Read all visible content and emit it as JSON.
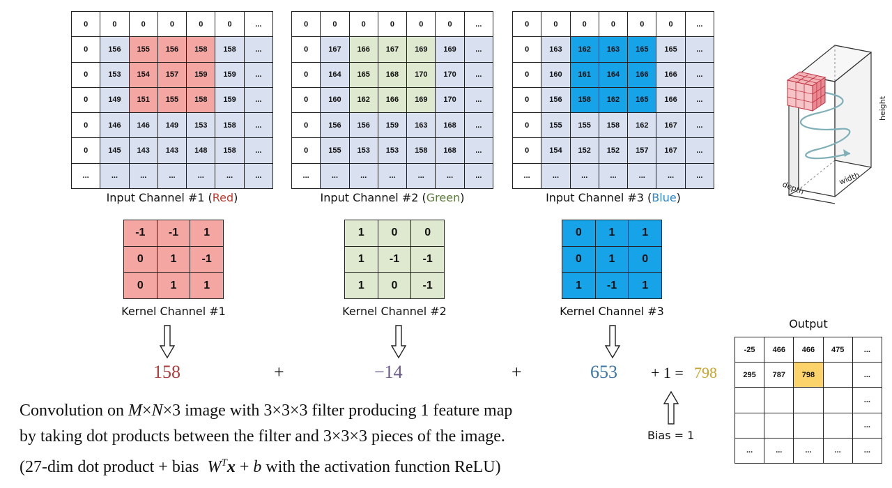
{
  "inputs": [
    {
      "caption_prefix": "Input Channel #1 (",
      "caption_color_word": "Red",
      "caption_suffix": ")",
      "word_color": "#c0392b",
      "fill": "#f4a6a3",
      "bg": "#d9e1f1",
      "rows": [
        [
          "0",
          "0",
          "0",
          "0",
          "0",
          "0",
          "..."
        ],
        [
          "0",
          "156",
          "155",
          "156",
          "158",
          "158",
          "..."
        ],
        [
          "0",
          "153",
          "154",
          "157",
          "159",
          "159",
          "..."
        ],
        [
          "0",
          "149",
          "151",
          "155",
          "158",
          "159",
          "..."
        ],
        [
          "0",
          "146",
          "146",
          "149",
          "153",
          "158",
          "..."
        ],
        [
          "0",
          "145",
          "143",
          "143",
          "148",
          "158",
          "..."
        ],
        [
          "...",
          "...",
          "...",
          "...",
          "...",
          "...",
          "..."
        ]
      ]
    },
    {
      "caption_prefix": "Input Channel #2 (",
      "caption_color_word": "Green",
      "caption_suffix": ")",
      "word_color": "#5a7a3a",
      "fill": "#dfe9cf",
      "bg": "#d9e1f1",
      "rows": [
        [
          "0",
          "0",
          "0",
          "0",
          "0",
          "0",
          "..."
        ],
        [
          "0",
          "167",
          "166",
          "167",
          "169",
          "169",
          "..."
        ],
        [
          "0",
          "164",
          "165",
          "168",
          "170",
          "170",
          "..."
        ],
        [
          "0",
          "160",
          "162",
          "166",
          "169",
          "170",
          "..."
        ],
        [
          "0",
          "156",
          "156",
          "159",
          "163",
          "168",
          "..."
        ],
        [
          "0",
          "155",
          "153",
          "153",
          "158",
          "168",
          "..."
        ],
        [
          "...",
          "...",
          "...",
          "...",
          "...",
          "...",
          "..."
        ]
      ]
    },
    {
      "caption_prefix": "Input Channel #3 (",
      "caption_color_word": "Blue",
      "caption_suffix": ")",
      "word_color": "#2f86c9",
      "fill": "#17a3e8",
      "bg": "#d9e1f1",
      "rows": [
        [
          "0",
          "0",
          "0",
          "0",
          "0",
          "0",
          "..."
        ],
        [
          "0",
          "163",
          "162",
          "163",
          "165",
          "165",
          "..."
        ],
        [
          "0",
          "160",
          "161",
          "164",
          "166",
          "166",
          "..."
        ],
        [
          "0",
          "156",
          "158",
          "162",
          "165",
          "166",
          "..."
        ],
        [
          "0",
          "155",
          "155",
          "158",
          "162",
          "167",
          "..."
        ],
        [
          "0",
          "154",
          "152",
          "152",
          "157",
          "167",
          "..."
        ],
        [
          "...",
          "...",
          "...",
          "...",
          "...",
          "...",
          "..."
        ]
      ]
    }
  ],
  "kernels": [
    {
      "caption": "Kernel Channel #1",
      "fill": "#f4a6a3",
      "rows": [
        [
          "-1",
          "-1",
          "1"
        ],
        [
          "0",
          "1",
          "-1"
        ],
        [
          "0",
          "1",
          "1"
        ]
      ]
    },
    {
      "caption": "Kernel Channel #2",
      "fill": "#dfe9cf",
      "rows": [
        [
          "1",
          "0",
          "0"
        ],
        [
          "1",
          "-1",
          "-1"
        ],
        [
          "1",
          "0",
          "-1"
        ]
      ]
    },
    {
      "caption": "Kernel Channel #3",
      "fill": "#17a3e8",
      "rows": [
        [
          "0",
          "1",
          "1"
        ],
        [
          "0",
          "1",
          "0"
        ],
        [
          "1",
          "-1",
          "1"
        ]
      ]
    }
  ],
  "results": {
    "r1": "158",
    "r1_color": "#b03a3a",
    "plus1": "+",
    "r2": "−14",
    "r2_color": "#6b5a8e",
    "plus2": "+",
    "r3": "653",
    "r3_color": "#3a76a8",
    "bias_expr": "+ 1 =",
    "total": "798",
    "total_color": "#c9a227"
  },
  "bias_label": "Bias = 1",
  "output": {
    "title": "Output",
    "highlight": "#fbd36a",
    "rows": [
      [
        "-25",
        "466",
        "466",
        "475",
        "..."
      ],
      [
        "295",
        "787",
        "798",
        "",
        "..."
      ],
      [
        "",
        "",
        "",
        "",
        "..."
      ],
      [
        "",
        "",
        "",
        "",
        "..."
      ],
      [
        "...",
        "...",
        "...",
        "...",
        "..."
      ]
    ]
  },
  "caption": {
    "l1_a": "Convolution on ",
    "l1_m": "M",
    "l1_x1": "×",
    "l1_n": "N",
    "l1_b": "×3 image with 3×3×3 filter producing 1 feature map",
    "line2": "by taking dot products between the filter and 3×3×3 pieces of the image.",
    "l3_a": "(27-dim dot product + bias",
    "l3_w": "W",
    "l3_t": "T",
    "l3_x": "x",
    "l3_b": " + ",
    "l3_bb": "b",
    "l3_c": " with the activation function ReLU)"
  },
  "cube": {
    "height": "height",
    "width": "width",
    "depth": "depth"
  }
}
